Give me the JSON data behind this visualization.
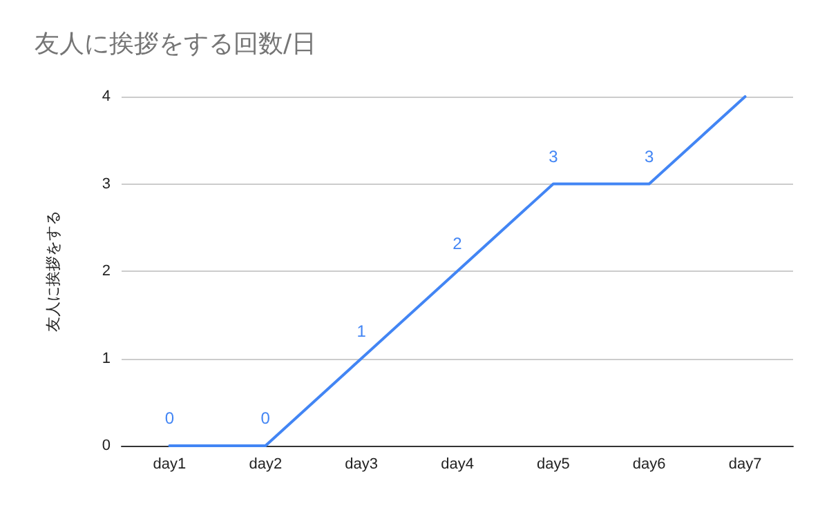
{
  "chart_data": {
    "type": "line",
    "title": "友人に挨拶をする回数/日",
    "ylabel": "友人に挨拶をする",
    "categories": [
      "day1",
      "day2",
      "day3",
      "day4",
      "day5",
      "day6",
      "day7"
    ],
    "series": [
      {
        "color": "#4285f4",
        "values": [
          0,
          0,
          1,
          2,
          3,
          3,
          4
        ],
        "value_labels": [
          "0",
          "0",
          "1",
          "2",
          "3",
          "3",
          null
        ]
      }
    ],
    "ylim": [
      0,
      4
    ],
    "yticks": [
      0,
      1,
      2,
      3,
      4
    ],
    "grid": "y",
    "marker": "none",
    "line_style": "solid"
  }
}
